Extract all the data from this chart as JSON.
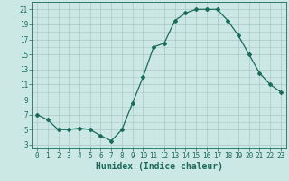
{
  "x": [
    0,
    1,
    2,
    3,
    4,
    5,
    6,
    7,
    8,
    9,
    10,
    11,
    12,
    13,
    14,
    15,
    16,
    17,
    18,
    19,
    20,
    21,
    22,
    23
  ],
  "y": [
    7.0,
    6.3,
    5.0,
    5.0,
    5.2,
    5.0,
    4.2,
    3.5,
    5.0,
    8.5,
    12.0,
    16.0,
    16.5,
    19.5,
    20.5,
    21.0,
    21.0,
    21.0,
    19.5,
    17.5,
    15.0,
    12.5,
    11.0,
    10.0
  ],
  "line_color": "#1a6b5a",
  "bg_color": "#cce8e4",
  "grid_color": "#aac8c4",
  "xlabel": "Humidex (Indice chaleur)",
  "xlim": [
    -0.5,
    23.5
  ],
  "ylim": [
    2.5,
    22
  ],
  "yticks": [
    3,
    5,
    7,
    9,
    11,
    13,
    15,
    17,
    19,
    21
  ],
  "xticks": [
    0,
    1,
    2,
    3,
    4,
    5,
    6,
    7,
    8,
    9,
    10,
    11,
    12,
    13,
    14,
    15,
    16,
    17,
    18,
    19,
    20,
    21,
    22,
    23
  ],
  "tick_fontsize": 5.5,
  "xlabel_fontsize": 7.0,
  "marker": "D",
  "marker_size": 2.0,
  "line_width": 0.9
}
